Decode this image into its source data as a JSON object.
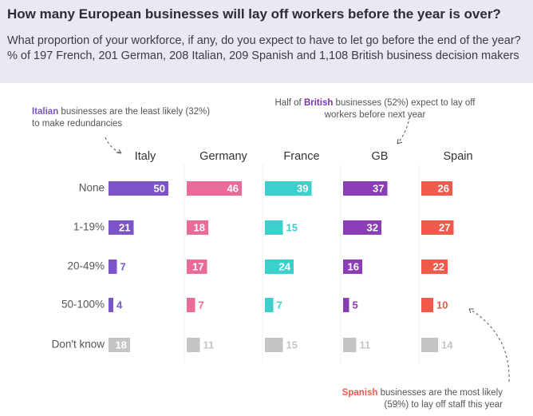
{
  "header": {
    "title": "How many European businesses will lay off workers before the year is over?",
    "subtitle": "What proportion of your workforce, if any, do you expect to have to let go before the end of the year? % of 197 French, 201 German, 208 Italian, 209 Spanish and 1,108 British business decision makers"
  },
  "annotations": {
    "italy": {
      "highlight": "Italian",
      "rest": " businesses are the least likely (32%) to make redundancies",
      "color": "#7b55c7"
    },
    "gb": {
      "pre": "Half of ",
      "highlight": "British",
      "rest": " businesses (52%) expect to lay off workers before next year",
      "color": "#7b2fb2"
    },
    "spain": {
      "highlight": "Spanish",
      "rest": " businesses are the most likely (59%) to lay off staff this year",
      "color": "#f05a4a"
    }
  },
  "chart_data": {
    "type": "bar",
    "title": "How many European businesses will lay off workers before the year is over?",
    "categories": [
      "None",
      "1-19%",
      "20-49%",
      "50-100%",
      "Don't know"
    ],
    "series": [
      {
        "name": "Italy",
        "color": "#7b55c7",
        "values": [
          50,
          21,
          7,
          4,
          18
        ]
      },
      {
        "name": "Germany",
        "color": "#e96b9a",
        "values": [
          46,
          18,
          17,
          7,
          11
        ]
      },
      {
        "name": "France",
        "color": "#3ccfcb",
        "values": [
          39,
          15,
          24,
          7,
          15
        ]
      },
      {
        "name": "GB",
        "color": "#8a3db6",
        "values": [
          37,
          32,
          16,
          5,
          11
        ]
      },
      {
        "name": "Spain",
        "color": "#f05a4a",
        "values": [
          26,
          27,
          22,
          10,
          14
        ]
      }
    ],
    "dont_know_color": "#c4c4c4",
    "xlim": [
      0,
      55
    ],
    "grid": false,
    "legend": "none"
  }
}
